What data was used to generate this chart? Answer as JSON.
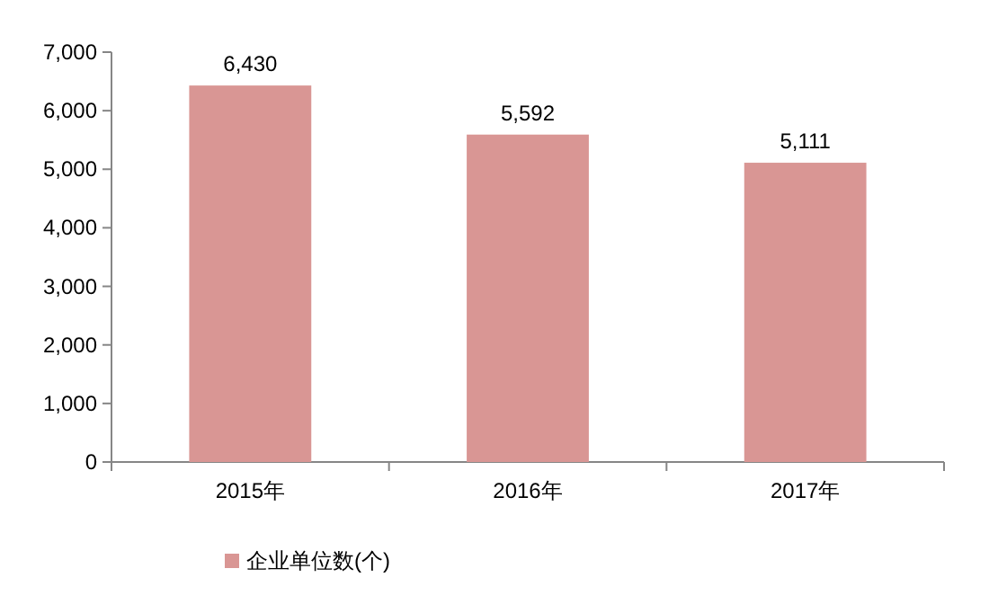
{
  "chart_data": {
    "type": "bar",
    "categories": [
      "2015年",
      "2016年",
      "2017年"
    ],
    "series": [
      {
        "name": "企业单位数(个)",
        "color": "#d99694",
        "values": [
          6430,
          5592,
          5111
        ]
      }
    ],
    "value_labels": [
      "6,430",
      "5,592",
      "5,111"
    ],
    "ylim": [
      0,
      7000
    ],
    "yticks": [
      0,
      {
        "value": 1000,
        "label": "1,000"
      },
      {
        "value": 2000,
        "label": "2,000"
      },
      {
        "value": 3000,
        "label": "3,000"
      },
      {
        "value": 4000,
        "label": "4,000"
      },
      {
        "value": 5000,
        "label": "5,000"
      },
      {
        "value": 6000,
        "label": "6,000"
      },
      {
        "value": 7000,
        "label": "7,000"
      }
    ],
    "grid": false,
    "legend": "bottom"
  }
}
